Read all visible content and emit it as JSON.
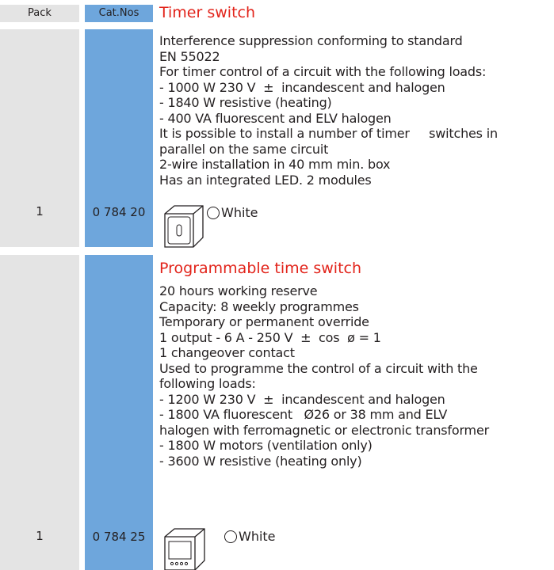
{
  "header": {
    "pack": "Pack",
    "cat_nos": "Cat.Nos"
  },
  "products": [
    {
      "title": "Timer switch",
      "pack": "1",
      "cat_no": "0 784 20",
      "lines": [
        "Interference suppression conforming to standard",
        "EN 55022",
        "For timer control of a circuit with the following loads:",
        "- 1000 W 230 V  ±  incandescent and halogen",
        "- 1840 W resistive (heating)",
        "- 400 VA fluorescent and ELV halogen",
        "It is possible to install a number of timer     switches in",
        "parallel on the same circuit",
        "2-wire installation in 40 mm min. box",
        "Has an integrated LED. 2 modules"
      ],
      "option": "White"
    },
    {
      "title": "Programmable time switch",
      "pack": "1",
      "cat_no": "0 784 25",
      "lines": [
        "20 hours working reserve",
        "Capacity: 8 weekly programmes",
        "Temporary or permanent override",
        "1 output - 6 A - 250 V  ±  cos  ø = 1",
        "1 changeover contact",
        "Used to programme the control of a circuit with the",
        "following loads:",
        "- 1200 W 230 V  ±  incandescent and halogen",
        "- 1800 VA fluorescent   Ø26 or 38 mm and ELV",
        "halogen with ferromagnetic or electronic transformer",
        "- 1800 W motors (ventilation only)",
        "- 3600 W resistive (heating only)"
      ],
      "option": "White"
    }
  ]
}
